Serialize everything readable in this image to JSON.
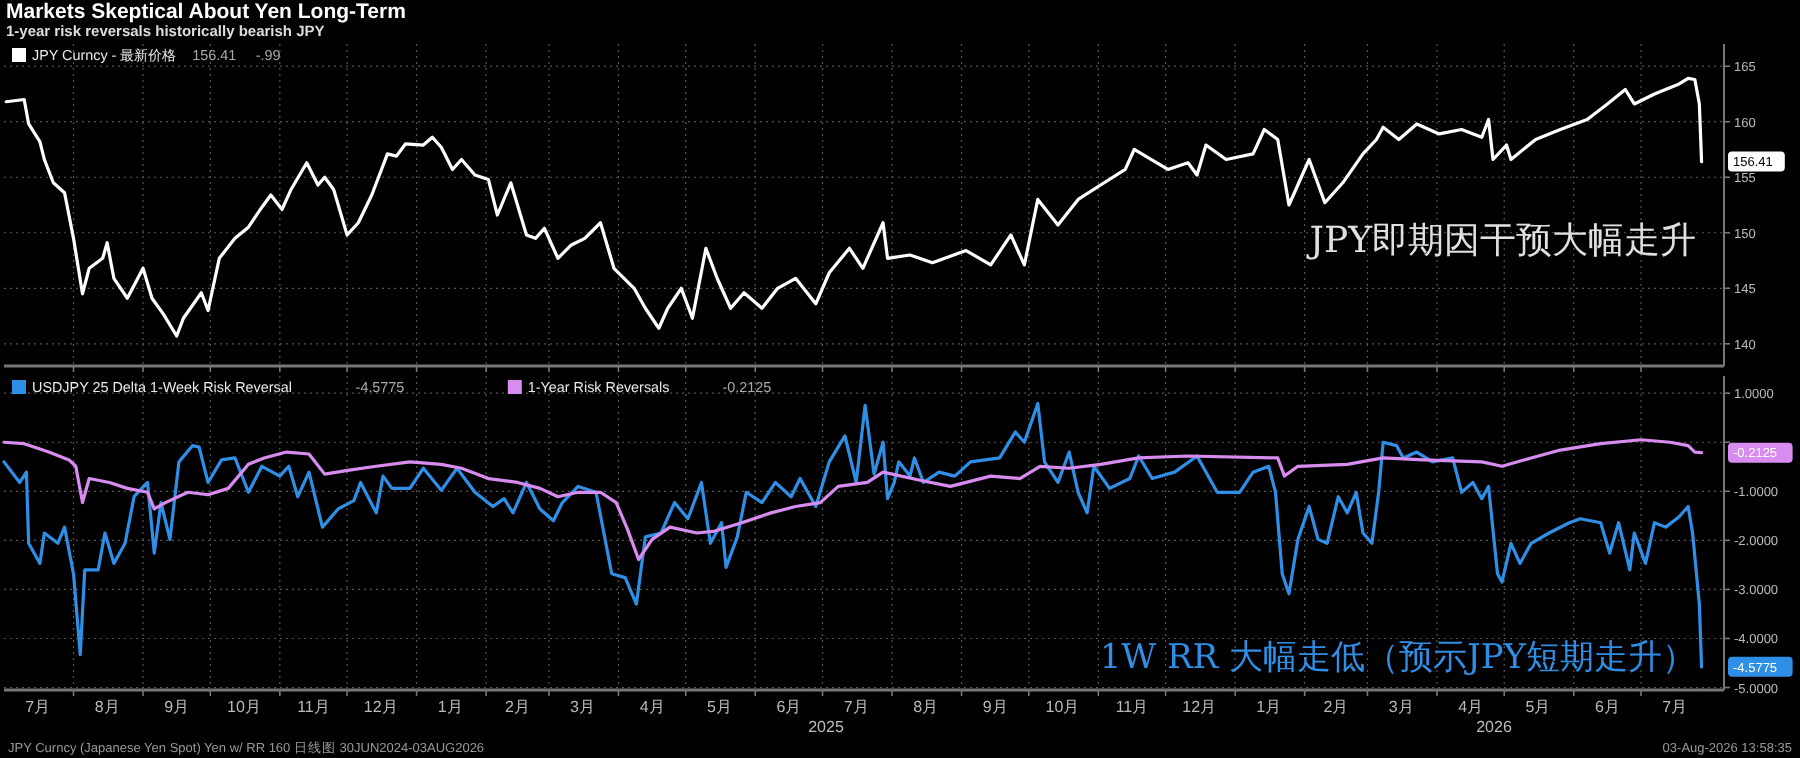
{
  "chart_data": [
    {
      "type": "line",
      "title": "Markets Skeptical About Yen Long-Term",
      "subtitle": "1-year risk reversals historically bearish JPY",
      "xlim": [
        "2024-07-01",
        "2026-08-07"
      ],
      "ylim": [
        138,
        167
      ],
      "yticks": [
        140,
        145,
        150,
        155,
        160,
        165
      ],
      "xticks": [
        {
          "value": "2024-08-01",
          "label": null
        },
        {
          "value": "2024-09-01",
          "label": null
        },
        {
          "value": "2024-10-01",
          "label": null
        },
        {
          "value": "2024-11-01",
          "label": null
        },
        {
          "value": "2024-12-01",
          "label": null
        },
        {
          "value": "2025-01-01",
          "label": null
        },
        {
          "value": "2025-02-01",
          "label": null
        },
        {
          "value": "2025-03-01",
          "label": null
        },
        {
          "value": "2025-04-01",
          "label": null
        },
        {
          "value": "2025-05-01",
          "label": null
        },
        {
          "value": "2025-06-01",
          "label": null
        },
        {
          "value": "2025-07-01",
          "label": null
        },
        {
          "value": "2025-08-01",
          "label": null
        },
        {
          "value": "2025-09-01",
          "label": null
        },
        {
          "value": "2025-10-01",
          "label": null
        },
        {
          "value": "2025-11-01",
          "label": null
        },
        {
          "value": "2025-12-01",
          "label": null
        },
        {
          "value": "2026-01-01",
          "label": null
        },
        {
          "value": "2026-02-01",
          "label": null
        },
        {
          "value": "2026-03-01",
          "label": null
        },
        {
          "value": "2026-04-01",
          "label": null
        },
        {
          "value": "2026-05-01",
          "label": null
        },
        {
          "value": "2026-06-01",
          "label": null
        },
        {
          "value": "2026-07-01",
          "label": null
        }
      ],
      "tick_labels": "y",
      "grid": true,
      "legend": "top left",
      "line_style": "solid",
      "series": [
        {
          "name": "JPY Curncy - 最新价格",
          "color": "#ffffff",
          "x": [
            "2024-07-02",
            "2024-07-10",
            "2024-07-12",
            "2024-07-17",
            "2024-07-19",
            "2024-07-23",
            "2024-07-28",
            "2024-08-01",
            "2024-08-05",
            "2024-08-08",
            "2024-08-14",
            "2024-08-16",
            "2024-08-19",
            "2024-08-25",
            "2024-09-01",
            "2024-09-05",
            "2024-09-10",
            "2024-09-16",
            "2024-09-19",
            "2024-09-27",
            "2024-09-30",
            "2024-10-05",
            "2024-10-12",
            "2024-10-18",
            "2024-10-24",
            "2024-10-28",
            "2024-11-02",
            "2024-11-06",
            "2024-11-13",
            "2024-11-18",
            "2024-11-21",
            "2024-11-25",
            "2024-12-01",
            "2024-12-06",
            "2024-12-12",
            "2024-12-19",
            "2024-12-23",
            "2024-12-27",
            "2025-01-04",
            "2025-01-08",
            "2025-01-12",
            "2025-01-17",
            "2025-01-21",
            "2025-01-27",
            "2025-02-02",
            "2025-02-06",
            "2025-02-12",
            "2025-02-19",
            "2025-02-23",
            "2025-02-27",
            "2025-03-05",
            "2025-03-11",
            "2025-03-17",
            "2025-03-24",
            "2025-03-30",
            "2025-04-08",
            "2025-04-13",
            "2025-04-19",
            "2025-04-23",
            "2025-04-29",
            "2025-05-04",
            "2025-05-10",
            "2025-05-15",
            "2025-05-21",
            "2025-05-27",
            "2025-06-04",
            "2025-06-11",
            "2025-06-19",
            "2025-06-28",
            "2025-07-04",
            "2025-07-13",
            "2025-07-19",
            "2025-07-28",
            "2025-07-30",
            "2025-08-09",
            "2025-08-19",
            "2025-09-03",
            "2025-09-14",
            "2025-09-23",
            "2025-09-29",
            "2025-10-05",
            "2025-10-14",
            "2025-10-23",
            "2025-11-02",
            "2025-11-13",
            "2025-11-17",
            "2025-12-02",
            "2025-12-11",
            "2025-12-15",
            "2025-12-19",
            "2025-12-28",
            "2026-01-09",
            "2026-01-14",
            "2026-01-20",
            "2026-01-25",
            "2026-02-03",
            "2026-02-10",
            "2026-02-18",
            "2026-02-27",
            "2026-03-05",
            "2026-03-08",
            "2026-03-15",
            "2026-03-23",
            "2026-04-02",
            "2026-04-12",
            "2026-04-21",
            "2026-04-24",
            "2026-04-26",
            "2026-05-02",
            "2026-05-04",
            "2026-05-15",
            "2026-05-26",
            "2026-06-07",
            "2026-06-16",
            "2026-06-24",
            "2026-06-28",
            "2026-07-07",
            "2026-07-18",
            "2026-07-22",
            "2026-07-25",
            "2026-07-27",
            "2026-07-28"
          ],
          "values": [
            161.8,
            162.0,
            159.8,
            158.2,
            156.6,
            154.5,
            153.6,
            149.5,
            144.5,
            146.8,
            147.7,
            149.1,
            145.9,
            144.1,
            146.8,
            144.1,
            142.7,
            140.7,
            142.3,
            144.6,
            143.0,
            147.7,
            149.5,
            150.5,
            152.3,
            153.4,
            152.1,
            153.9,
            156.3,
            154.3,
            155.0,
            153.9,
            149.8,
            150.9,
            153.4,
            157.1,
            156.9,
            158.0,
            157.9,
            158.6,
            157.7,
            155.7,
            156.6,
            155.2,
            154.8,
            151.6,
            154.5,
            149.8,
            149.5,
            150.4,
            147.7,
            148.9,
            149.5,
            150.9,
            146.8,
            145.0,
            143.2,
            141.4,
            143.2,
            145.0,
            142.3,
            148.6,
            145.9,
            143.2,
            144.6,
            143.2,
            145.0,
            145.9,
            143.6,
            146.4,
            148.6,
            146.8,
            150.9,
            147.7,
            148.0,
            147.3,
            148.4,
            147.1,
            149.8,
            147.1,
            153.0,
            150.7,
            153.0,
            154.3,
            155.7,
            157.5,
            155.7,
            156.3,
            155.2,
            157.9,
            156.6,
            157.1,
            159.3,
            158.4,
            152.5,
            156.6,
            152.7,
            154.5,
            157.1,
            158.4,
            159.5,
            158.4,
            159.8,
            158.9,
            159.3,
            158.6,
            160.2,
            156.6,
            157.9,
            156.6,
            158.4,
            159.3,
            160.2,
            161.6,
            162.9,
            161.6,
            162.5,
            163.4,
            163.9,
            163.8,
            161.6,
            156.41
          ]
        }
      ],
      "annotations": [
        {
          "text": "156.41",
          "x": "2026-07-28",
          "y": 156.41
        },
        "-.99",
        "JPY即期因干预大幅走升"
      ]
    },
    {
      "type": "line",
      "xlim": [
        "2024-07-01",
        "2026-08-07"
      ],
      "ylim": [
        -5.05,
        1.35
      ],
      "yticks": [
        {
          "value": 1,
          "label": "1.0000"
        },
        {
          "value": 0,
          "label": null
        },
        {
          "value": -1,
          "label": "-1.0000"
        },
        {
          "value": -2,
          "label": "-2.0000"
        },
        {
          "value": -3,
          "label": "-3.0000"
        },
        {
          "value": -4,
          "label": "-4.0000"
        },
        {
          "value": -5,
          "label": "-5.0000"
        }
      ],
      "xticks": [
        {
          "value": "2024-07-16",
          "label": "7月"
        },
        {
          "value": "2024-08-01",
          "label": null
        },
        {
          "value": "2024-08-16",
          "label": "8月"
        },
        {
          "value": "2024-09-01",
          "label": null
        },
        {
          "value": "2024-09-16",
          "label": "9月"
        },
        {
          "value": "2024-10-01",
          "label": null
        },
        {
          "value": "2024-10-16",
          "label": "10月"
        },
        {
          "value": "2024-11-01",
          "label": null
        },
        {
          "value": "2024-11-16",
          "label": "11月"
        },
        {
          "value": "2024-12-01",
          "label": null
        },
        {
          "value": "2024-12-16",
          "label": "12月"
        },
        {
          "value": "2025-01-01",
          "label": null
        },
        {
          "value": "2025-01-16",
          "label": "1月"
        },
        {
          "value": "2025-02-01",
          "label": null
        },
        {
          "value": "2025-02-15",
          "label": "2月"
        },
        {
          "value": "2025-03-01",
          "label": null
        },
        {
          "value": "2025-03-16",
          "label": "3月"
        },
        {
          "value": "2025-04-01",
          "label": null
        },
        {
          "value": "2025-04-16",
          "label": "4月"
        },
        {
          "value": "2025-05-01",
          "label": null
        },
        {
          "value": "2025-05-16",
          "label": "5月"
        },
        {
          "value": "2025-06-01",
          "label": null
        },
        {
          "value": "2025-06-16",
          "label": "6月"
        },
        {
          "value": "2025-07-01",
          "label": null
        },
        {
          "value": "2025-07-16",
          "label": "7月"
        },
        {
          "value": "2025-08-01",
          "label": null
        },
        {
          "value": "2025-08-16",
          "label": "8月"
        },
        {
          "value": "2025-09-01",
          "label": null
        },
        {
          "value": "2025-09-16",
          "label": "9月"
        },
        {
          "value": "2025-10-01",
          "label": null
        },
        {
          "value": "2025-10-16",
          "label": "10月"
        },
        {
          "value": "2025-11-01",
          "label": null
        },
        {
          "value": "2025-11-16",
          "label": "11月"
        },
        {
          "value": "2025-12-01",
          "label": null
        },
        {
          "value": "2025-12-16",
          "label": "12月"
        },
        {
          "value": "2026-01-01",
          "label": null
        },
        {
          "value": "2026-01-16",
          "label": "1月"
        },
        {
          "value": "2026-02-01",
          "label": null
        },
        {
          "value": "2026-02-15",
          "label": "2月"
        },
        {
          "value": "2026-03-01",
          "label": null
        },
        {
          "value": "2026-03-16",
          "label": "3月"
        },
        {
          "value": "2026-04-01",
          "label": null
        },
        {
          "value": "2026-04-16",
          "label": "4月"
        },
        {
          "value": "2026-05-01",
          "label": null
        },
        {
          "value": "2026-05-16",
          "label": "5月"
        },
        {
          "value": "2026-06-01",
          "label": null
        },
        {
          "value": "2026-06-16",
          "label": "6月"
        },
        {
          "value": "2026-07-01",
          "label": null
        },
        {
          "value": "2026-07-16",
          "label": "7月"
        }
      ],
      "grid": true,
      "legend": "top left",
      "line_style": "solid",
      "series": [
        {
          "name": "USDJPY 25 Delta 1-Week Risk Reversal",
          "color": "#2f8fe6",
          "x": [
            "2024-07-01",
            "2024-07-08",
            "2024-07-11",
            "2024-07-12",
            "2024-07-17",
            "2024-07-19",
            "2024-07-25",
            "2024-07-28",
            "2024-08-01",
            "2024-08-04",
            "2024-08-06",
            "2024-08-12",
            "2024-08-15",
            "2024-08-19",
            "2024-08-24",
            "2024-08-28",
            "2024-09-03",
            "2024-09-06",
            "2024-09-09",
            "2024-09-13",
            "2024-09-17",
            "2024-09-23",
            "2024-09-26",
            "2024-09-30",
            "2024-10-06",
            "2024-10-12",
            "2024-10-18",
            "2024-10-24",
            "2024-11-01",
            "2024-11-05",
            "2024-11-09",
            "2024-11-14",
            "2024-11-20",
            "2024-11-27",
            "2024-12-04",
            "2024-12-07",
            "2024-12-14",
            "2024-12-17",
            "2024-12-21",
            "2024-12-29",
            "2025-01-04",
            "2025-01-12",
            "2025-01-19",
            "2025-01-27",
            "2025-02-04",
            "2025-02-09",
            "2025-02-13",
            "2025-02-19",
            "2025-02-25",
            "2025-03-03",
            "2025-03-07",
            "2025-03-14",
            "2025-03-22",
            "2025-03-29",
            "2025-04-04",
            "2025-04-09",
            "2025-04-13",
            "2025-04-20",
            "2025-04-26",
            "2025-05-02",
            "2025-05-08",
            "2025-05-12",
            "2025-05-17",
            "2025-05-19",
            "2025-05-24",
            "2025-05-28",
            "2025-06-04",
            "2025-06-10",
            "2025-06-17",
            "2025-06-21",
            "2025-06-28",
            "2025-07-04",
            "2025-07-11",
            "2025-07-16",
            "2025-07-20",
            "2025-07-24",
            "2025-07-28",
            "2025-07-30",
            "2025-08-02",
            "2025-08-04",
            "2025-08-09",
            "2025-08-11",
            "2025-08-15",
            "2025-08-22",
            "2025-08-29",
            "2025-09-05",
            "2025-09-18",
            "2025-09-25",
            "2025-09-29",
            "2025-10-05",
            "2025-10-08",
            "2025-10-14",
            "2025-10-19",
            "2025-10-23",
            "2025-10-27",
            "2025-10-30",
            "2025-11-06",
            "2025-11-15",
            "2025-11-19",
            "2025-11-25",
            "2025-12-05",
            "2025-12-15",
            "2025-12-24",
            "2026-01-03",
            "2026-01-09",
            "2026-01-16",
            "2026-01-19",
            "2026-01-22",
            "2026-01-25",
            "2026-01-29",
            "2026-02-03",
            "2026-02-07",
            "2026-02-11",
            "2026-02-16",
            "2026-02-20",
            "2026-02-24",
            "2026-02-27",
            "2026-03-03",
            "2026-03-06",
            "2026-03-08",
            "2026-03-14",
            "2026-03-17",
            "2026-03-23",
            "2026-03-30",
            "2026-04-08",
            "2026-04-12",
            "2026-04-17",
            "2026-04-21",
            "2026-04-24",
            "2026-04-28",
            "2026-04-30",
            "2026-05-04",
            "2026-05-08",
            "2026-05-13",
            "2026-05-21",
            "2026-05-30",
            "2026-06-04",
            "2026-06-13",
            "2026-06-17",
            "2026-06-21",
            "2026-06-26",
            "2026-06-28",
            "2026-07-03",
            "2026-07-07",
            "2026-07-12",
            "2026-07-18",
            "2026-07-22",
            "2026-07-24",
            "2026-07-27",
            "2026-07-28"
          ],
          "values": [
            -0.4,
            -0.82,
            -0.61,
            -2.06,
            -2.47,
            -1.85,
            -2.06,
            -1.73,
            -2.68,
            -4.33,
            -2.6,
            -2.6,
            -1.85,
            -2.47,
            -2.06,
            -1.11,
            -0.82,
            -2.26,
            -1.23,
            -1.98,
            -0.4,
            -0.07,
            -0.1,
            -0.82,
            -0.36,
            -0.32,
            -1.02,
            -0.49,
            -0.69,
            -0.49,
            -1.11,
            -0.61,
            -1.73,
            -1.36,
            -1.19,
            -0.82,
            -1.44,
            -0.69,
            -0.94,
            -0.94,
            -0.53,
            -0.98,
            -0.53,
            -1.02,
            -1.31,
            -1.15,
            -1.44,
            -0.82,
            -1.36,
            -1.6,
            -1.23,
            -0.9,
            -1.02,
            -2.68,
            -2.76,
            -3.3,
            -1.93,
            -1.85,
            -1.23,
            -1.56,
            -0.82,
            -2.06,
            -1.64,
            -2.55,
            -1.93,
            -1.02,
            -1.23,
            -0.82,
            -1.11,
            -0.74,
            -1.31,
            -0.4,
            0.13,
            -0.82,
            0.75,
            -0.65,
            0.0,
            -1.15,
            -0.82,
            -0.4,
            -0.69,
            -0.32,
            -0.82,
            -0.61,
            -0.69,
            -0.4,
            -0.32,
            0.21,
            0.0,
            0.79,
            -0.4,
            -0.82,
            -0.2,
            -1.02,
            -1.44,
            -0.49,
            -0.94,
            -0.74,
            -0.28,
            -0.74,
            -0.61,
            -0.28,
            -1.02,
            -1.02,
            -0.61,
            -0.49,
            -1.02,
            -2.68,
            -3.09,
            -1.98,
            -1.31,
            -1.98,
            -2.06,
            -1.11,
            -1.44,
            -1.02,
            -1.85,
            -2.06,
            -1.02,
            0.0,
            -0.07,
            -0.32,
            -0.2,
            -0.4,
            -0.32,
            -1.02,
            -0.82,
            -1.15,
            -0.9,
            -2.68,
            -2.85,
            -2.06,
            -2.47,
            -2.06,
            -1.85,
            -1.64,
            -1.56,
            -1.64,
            -2.26,
            -1.64,
            -2.6,
            -1.85,
            -2.47,
            -1.64,
            -1.73,
            -1.52,
            -1.31,
            -1.85,
            -3.3,
            -4.5775
          ]
        },
        {
          "name": "1-Year Risk Reversals",
          "color": "#d98cf0",
          "x": [
            "2024-07-01",
            "2024-07-10",
            "2024-07-21",
            "2024-07-30",
            "2024-08-02",
            "2024-08-05",
            "2024-08-08",
            "2024-08-17",
            "2024-08-25",
            "2024-09-03",
            "2024-09-06",
            "2024-09-11",
            "2024-09-21",
            "2024-09-30",
            "2024-10-09",
            "2024-10-18",
            "2024-10-25",
            "2024-11-04",
            "2024-11-14",
            "2024-11-21",
            "2024-12-02",
            "2024-12-14",
            "2024-12-29",
            "2025-01-12",
            "2025-01-21",
            "2025-02-02",
            "2025-02-15",
            "2025-02-25",
            "2025-03-05",
            "2025-03-14",
            "2025-03-24",
            "2025-03-31",
            "2025-04-05",
            "2025-04-10",
            "2025-04-16",
            "2025-04-24",
            "2025-05-06",
            "2025-05-14",
            "2025-05-26",
            "2025-06-08",
            "2025-06-19",
            "2025-06-30",
            "2025-07-08",
            "2025-07-21",
            "2025-07-28",
            "2025-08-14",
            "2025-08-27",
            "2025-09-14",
            "2025-09-27",
            "2025-10-06",
            "2025-10-19",
            "2025-11-02",
            "2025-11-19",
            "2025-12-11",
            "2026-01-20",
            "2026-01-23",
            "2026-01-29",
            "2026-02-20",
            "2026-03-08",
            "2026-03-26",
            "2026-04-21",
            "2026-04-30",
            "2026-05-13",
            "2026-05-26",
            "2026-06-13",
            "2026-07-01",
            "2026-07-14",
            "2026-07-22",
            "2026-07-25",
            "2026-07-28"
          ],
          "values": [
            0.0,
            -0.03,
            -0.2,
            -0.36,
            -0.49,
            -1.23,
            -0.74,
            -0.82,
            -0.94,
            -1.02,
            -1.36,
            -1.23,
            -1.02,
            -1.07,
            -0.94,
            -0.45,
            -0.32,
            -0.2,
            -0.24,
            -0.65,
            -0.57,
            -0.49,
            -0.4,
            -0.45,
            -0.53,
            -0.74,
            -0.82,
            -0.94,
            -1.11,
            -1.02,
            -1.02,
            -1.23,
            -1.77,
            -2.39,
            -1.98,
            -1.73,
            -1.85,
            -1.81,
            -1.64,
            -1.44,
            -1.31,
            -1.23,
            -0.9,
            -0.82,
            -0.61,
            -0.78,
            -0.9,
            -0.69,
            -0.74,
            -0.49,
            -0.53,
            -0.45,
            -0.32,
            -0.28,
            -0.32,
            -0.69,
            -0.49,
            -0.45,
            -0.32,
            -0.36,
            -0.4,
            -0.49,
            -0.32,
            -0.16,
            -0.03,
            0.05,
            0.0,
            -0.07,
            -0.2,
            -0.2125
          ]
        }
      ],
      "annotations": [
        {
          "text": "-4.5775",
          "x": "2026-07-28",
          "y": -4.5775
        },
        {
          "text": "-0.2125",
          "x": "2026-07-28",
          "y": -0.2125
        },
        "1W RR 大幅走低（预示JPY短期走升）",
        "2025",
        "2026",
        "JPY Curncy (Japanese Yen Spot) Yen w/ RR 160 日线图 30JUN2024-03AUG2026",
        "03-Aug-2026 13:58:35"
      ]
    }
  ]
}
